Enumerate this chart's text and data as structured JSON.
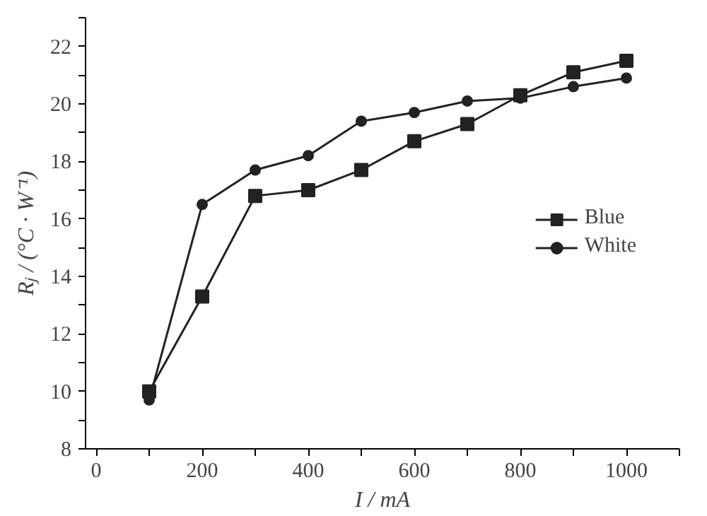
{
  "chart_data": {
    "type": "line",
    "xlabel": "I / mA",
    "ylabel": "Rⱼ / (°C · W⁻¹)",
    "x": [
      100,
      200,
      300,
      400,
      500,
      600,
      700,
      800,
      900,
      1000
    ],
    "series": [
      {
        "name": "Blue",
        "color": "#222222",
        "marker": "square",
        "values": [
          10.0,
          13.3,
          16.8,
          17.0,
          17.7,
          18.7,
          19.3,
          20.3,
          21.1,
          21.5
        ]
      },
      {
        "name": "White",
        "color": "#222222",
        "marker": "circle",
        "values": [
          9.7,
          16.5,
          17.7,
          18.2,
          19.4,
          19.7,
          20.1,
          20.2,
          20.6,
          20.9
        ]
      }
    ],
    "xlim": [
      -20,
      1100
    ],
    "xticks": [
      0,
      {
        "value": 100,
        "label": null
      },
      200,
      {
        "value": 300,
        "label": null
      },
      400,
      {
        "value": 500,
        "label": null
      },
      600,
      {
        "value": 700,
        "label": null
      },
      800,
      {
        "value": 900,
        "label": null
      },
      1000,
      {
        "value": 1100,
        "label": null
      }
    ],
    "ylim": [
      8,
      23
    ],
    "yticks": [
      8,
      {
        "value": 9,
        "label": null
      },
      10,
      {
        "value": 11,
        "label": null
      },
      12,
      {
        "value": 13,
        "label": null
      },
      14,
      {
        "value": 15,
        "label": null
      },
      16,
      {
        "value": 17,
        "label": null
      },
      18,
      {
        "value": 19,
        "label": null
      },
      20,
      {
        "value": 21,
        "label": null
      },
      22,
      {
        "value": 23,
        "label": null
      }
    ],
    "grid": false,
    "legend": "right",
    "line_style": "solid"
  }
}
